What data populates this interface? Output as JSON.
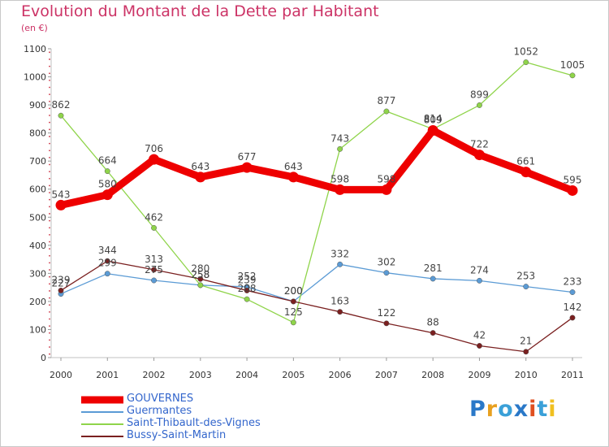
{
  "title": "Evolution du Montant de la Dette par Habitant",
  "unit_label": "(en €)",
  "logo": {
    "text": "Proxiti",
    "letter_colors": [
      "#2a78c8",
      "#e8a020",
      "#3aa0d8",
      "#2a78c8",
      "#e05020",
      "#3aa0d8",
      "#f0c020"
    ]
  },
  "chart_data": {
    "type": "line",
    "title": "Evolution du Montant de la Dette par Habitant",
    "ylabel": "(en €)",
    "xlabel": "",
    "x": [
      "2000",
      "2001",
      "2002",
      "2003",
      "2004",
      "2005",
      "2006",
      "2007",
      "2008",
      "2009",
      "2010",
      "2011"
    ],
    "ylim": [
      0,
      1100
    ],
    "yticks": [
      "0",
      "100",
      "200",
      "300",
      "400",
      "500",
      "600",
      "700",
      "800",
      "900",
      "1000",
      "1100"
    ],
    "grid": false,
    "legend_position": "bottom-left",
    "series": [
      {
        "name": "GOUVERNES",
        "color": "#ee0000",
        "values": [
          543,
          580,
          706,
          643,
          677,
          643,
          598,
          598,
          809,
          722,
          661,
          595
        ],
        "labels": [
          "543",
          "580",
          "706",
          "643",
          "677",
          "643",
          "598",
          "598",
          "809",
          "722",
          "661",
          "595"
        ],
        "emphasis": "thick"
      },
      {
        "name": "Guermantes",
        "color": "#5b9bd5",
        "values": [
          227,
          299,
          275,
          258,
          252,
          200,
          332,
          302,
          281,
          274,
          253,
          233
        ],
        "labels": [
          "227",
          "299",
          "275",
          "258",
          "252",
          "200",
          "332",
          "302",
          "281",
          "274",
          "253",
          "233"
        ],
        "emphasis": "thin"
      },
      {
        "name": "Saint-Thibault-des-Vignes",
        "color": "#8fd44a",
        "values": [
          862,
          664,
          462,
          258,
          208,
          125,
          743,
          877,
          814,
          899,
          1052,
          1005
        ],
        "labels": [
          "862",
          "664",
          "462",
          "258",
          "208",
          "125",
          "743",
          "877",
          "814",
          "899",
          "1052",
          "1005"
        ],
        "emphasis": "thin"
      },
      {
        "name": "Bussy-Saint-Martin",
        "color": "#7a2020",
        "values": [
          239,
          344,
          313,
          280,
          239,
          200,
          163,
          122,
          88,
          42,
          21,
          142
        ],
        "labels": [
          "239",
          "344",
          "313",
          "280",
          "239",
          "200",
          "163",
          "122",
          "88",
          "42",
          "21",
          "142"
        ],
        "emphasis": "thin"
      }
    ]
  }
}
